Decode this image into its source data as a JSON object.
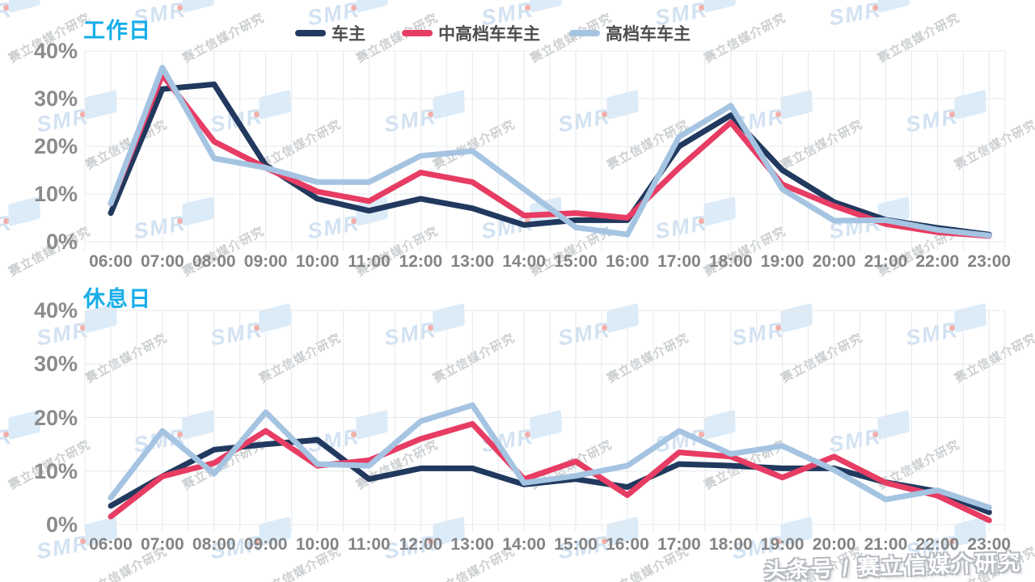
{
  "stamp": "头条号 / 赛立信媒介研究",
  "watermark": {
    "smr": "SMR",
    "text": "赛立信媒介研究"
  },
  "colors": {
    "owner_navy": "#21395e",
    "mid_high_pink": "#e73c63",
    "high_blue": "#a5c4e2",
    "title_cyan": "#17aee9",
    "axis_gray": "#8c8c8c",
    "grid_gray": "#e4e8ec"
  },
  "chart_data": [
    {
      "type": "line",
      "title": "工作日",
      "categories": [
        "06:00",
        "07:00",
        "08:00",
        "09:00",
        "10:00",
        "11:00",
        "12:00",
        "13:00",
        "14:00",
        "15:00",
        "16:00",
        "17:00",
        "18:00",
        "19:00",
        "20:00",
        "21:00",
        "22:00",
        "23:00"
      ],
      "series": [
        {
          "name": "车主",
          "color": "#21395e",
          "values": [
            6,
            32,
            33,
            16,
            9,
            6.5,
            9,
            7,
            3.5,
            4.5,
            4.5,
            20,
            26.5,
            15,
            8.3,
            4.6,
            2.9,
            1.5
          ]
        },
        {
          "name": "中高档车车主",
          "color": "#e73c63",
          "values": [
            8,
            35,
            21,
            15.5,
            10.5,
            8.5,
            14.5,
            12.5,
            5.5,
            6,
            5,
            15.5,
            25,
            12,
            7.5,
            3.7,
            2,
            1.2
          ]
        },
        {
          "name": "高档车车主",
          "color": "#a5c4e2",
          "values": [
            8,
            36.5,
            17.5,
            15.5,
            12.5,
            12.5,
            18,
            19,
            11,
            3,
            1.5,
            22,
            28.5,
            11,
            4.4,
            4.5,
            2.5,
            1.3
          ]
        }
      ],
      "ylim": [
        0,
        40
      ],
      "y_ticks": [
        "40%",
        "30%",
        "20%",
        "10%",
        "0%"
      ],
      "grid": "both",
      "legend_position": "top"
    },
    {
      "type": "line",
      "title": "休息日",
      "categories": [
        "06:00",
        "07:00",
        "08:00",
        "09:00",
        "10:00",
        "11:00",
        "12:00",
        "13:00",
        "14:00",
        "15:00",
        "16:00",
        "17:00",
        "18:00",
        "19:00",
        "20:00",
        "21:00",
        "22:00",
        "23:00"
      ],
      "series": [
        {
          "name": "车主",
          "color": "#21395e",
          "values": [
            3.5,
            9,
            14,
            15,
            15.8,
            8.5,
            10.5,
            10.5,
            7.5,
            8.5,
            7,
            11.3,
            11,
            10.5,
            10.5,
            7.9,
            6.2,
            2.3
          ]
        },
        {
          "name": "中高档车车主",
          "color": "#e73c63",
          "values": [
            1.5,
            9,
            11.5,
            17.5,
            11,
            12,
            16,
            18.8,
            8.5,
            11.8,
            5.5,
            13.5,
            12.7,
            8.8,
            12.7,
            7.8,
            5.4,
            0.8
          ]
        },
        {
          "name": "高档车车主",
          "color": "#a5c4e2",
          "values": [
            5,
            17.5,
            9.5,
            21,
            11.3,
            11,
            19.3,
            22.3,
            7.8,
            9.1,
            11,
            17.5,
            13.2,
            14.7,
            10.2,
            4.7,
            6.4,
            3.2
          ]
        }
      ],
      "ylim": [
        0,
        40
      ],
      "y_ticks": [
        "40%",
        "30%",
        "20%",
        "10%",
        "0%"
      ],
      "grid": "both",
      "legend_position": "none"
    }
  ]
}
